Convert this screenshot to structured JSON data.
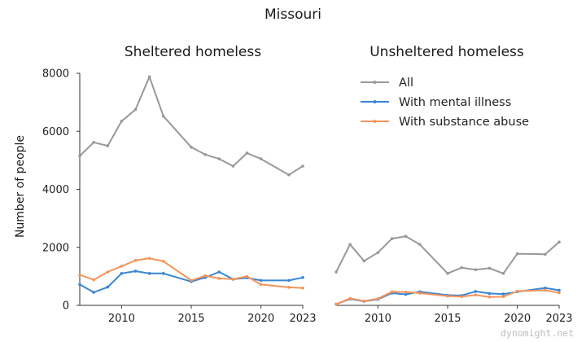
{
  "figure_title": "Missouri",
  "watermark": "dynomight.net",
  "chart_data": [
    {
      "type": "line",
      "title": "Sheltered homeless",
      "xlabel": "",
      "ylabel": "Number of people",
      "xlim": [
        2007,
        2023
      ],
      "ylim": [
        0,
        8000
      ],
      "x_ticks": [
        2010,
        2015,
        2020,
        2023
      ],
      "y_ticks": [
        0,
        2000,
        4000,
        6000,
        8000
      ],
      "grid": false,
      "x": [
        2007,
        2008,
        2009,
        2010,
        2011,
        2012,
        2013,
        2015,
        2016,
        2017,
        2018,
        2019,
        2020,
        2022,
        2023
      ],
      "series": [
        {
          "name": "All",
          "color": "#999999",
          "values": [
            5150,
            5620,
            5500,
            6350,
            6750,
            7880,
            6520,
            5450,
            5200,
            5050,
            4800,
            5250,
            5050,
            4500,
            4800
          ]
        },
        {
          "name": "With mental illness",
          "color": "#3a86d4",
          "values": [
            720,
            450,
            630,
            1100,
            1180,
            1100,
            1100,
            820,
            960,
            1150,
            900,
            950,
            860,
            860,
            960
          ]
        },
        {
          "name": "With substance abuse",
          "color": "#f5945a",
          "values": [
            1050,
            880,
            1150,
            1350,
            1550,
            1620,
            1520,
            860,
            1020,
            930,
            900,
            1000,
            720,
            620,
            600
          ]
        }
      ]
    },
    {
      "type": "line",
      "title": "Unsheltered homeless",
      "xlabel": "",
      "ylabel": "",
      "xlim": [
        2007,
        2023
      ],
      "ylim": [
        0,
        8000
      ],
      "x_ticks": [
        2010,
        2015,
        2020,
        2023
      ],
      "y_ticks": [],
      "grid": false,
      "legend": "top-right",
      "x": [
        2007,
        2008,
        2009,
        2010,
        2011,
        2012,
        2013,
        2015,
        2016,
        2017,
        2018,
        2019,
        2020,
        2022,
        2023
      ],
      "series": [
        {
          "name": "All",
          "color": "#999999",
          "values": [
            1150,
            2100,
            1530,
            1820,
            2300,
            2380,
            2100,
            1100,
            1300,
            1230,
            1280,
            1100,
            1780,
            1760,
            2180
          ]
        },
        {
          "name": "With mental illness",
          "color": "#3a86d4",
          "values": [
            40,
            220,
            140,
            210,
            420,
            380,
            470,
            350,
            340,
            480,
            410,
            390,
            470,
            600,
            520
          ]
        },
        {
          "name": "With substance abuse",
          "color": "#f5945a",
          "values": [
            40,
            240,
            150,
            230,
            470,
            460,
            420,
            320,
            300,
            360,
            290,
            300,
            490,
            520,
            430
          ]
        }
      ]
    }
  ]
}
